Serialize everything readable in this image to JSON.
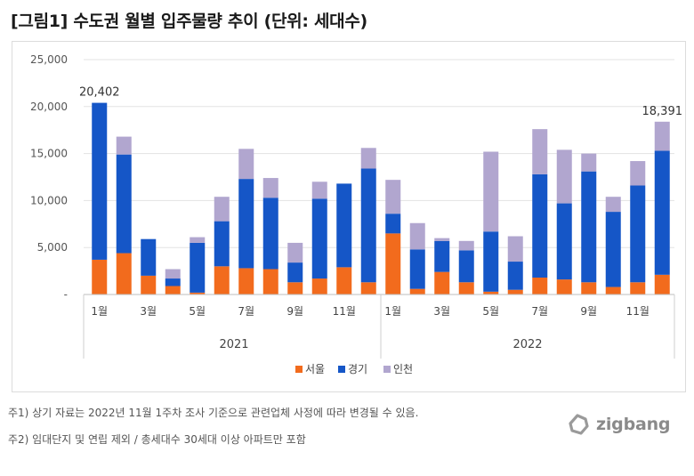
{
  "title": "[그림1] 수도권 월별 입주물량 추이 (단위: 세대수)",
  "notes": {
    "note1": "주1) 상기 자료는 2022년 11월 1주차 조사 기준으로 관련업체 사정에 따라 변경될 수 있음.",
    "note2": "주2) 임대단지 및 연립 제외 / 총세대수 30세대 이상 아파트만 포함"
  },
  "logo": {
    "text": "zigbang",
    "icon": "zigbang-logo-icon"
  },
  "colors": {
    "seoul": "#f26b1d",
    "gyeonggi": "#1556c7",
    "incheon": "#b1a6cf"
  },
  "chart_data": {
    "type": "bar",
    "stacked": true,
    "title": "",
    "xlabel": "",
    "ylabel": "",
    "ylim": [
      0,
      25000
    ],
    "yticks": [
      "25,000",
      "20,000",
      "15,000",
      "10,000",
      "5,000",
      "-"
    ],
    "ytick_values": [
      25000,
      20000,
      15000,
      10000,
      5000,
      0
    ],
    "categories": [
      "2021-01",
      "2021-02",
      "2021-03",
      "2021-04",
      "2021-05",
      "2021-06",
      "2021-07",
      "2021-08",
      "2021-09",
      "2021-10",
      "2021-11",
      "2021-12",
      "2022-01",
      "2022-02",
      "2022-03",
      "2022-04",
      "2022-05",
      "2022-06",
      "2022-07",
      "2022-08",
      "2022-09",
      "2022-10",
      "2022-11",
      "2022-12"
    ],
    "month_labels": [
      "1월",
      "",
      "3월",
      "",
      "5월",
      "",
      "7월",
      "",
      "9월",
      "",
      "11월",
      "",
      "1월",
      "",
      "3월",
      "",
      "5월",
      "",
      "7월",
      "",
      "9월",
      "",
      "11월",
      ""
    ],
    "groups": [
      {
        "label": "2021",
        "start": 0,
        "count": 12
      },
      {
        "label": "2022",
        "start": 12,
        "count": 12
      }
    ],
    "series": [
      {
        "name": "서울",
        "color_key": "seoul",
        "values": [
          3700,
          4400,
          2000,
          900,
          200,
          3000,
          2800,
          2700,
          1300,
          1700,
          2900,
          1300,
          6500,
          600,
          2400,
          1300,
          300,
          500,
          1800,
          1600,
          1300,
          800,
          1300,
          2100
        ]
      },
      {
        "name": "경기",
        "color_key": "gyeonggi",
        "values": [
          16700,
          10500,
          3900,
          800,
          5300,
          4800,
          9500,
          7600,
          2100,
          8500,
          8900,
          12100,
          2100,
          4200,
          3300,
          3400,
          6400,
          3000,
          11000,
          8100,
          11800,
          8000,
          10300,
          13200
        ]
      },
      {
        "name": "인천",
        "color_key": "incheon",
        "values": [
          0,
          1900,
          0,
          1000,
          600,
          2600,
          3200,
          2100,
          2100,
          1800,
          0,
          2200,
          3600,
          2800,
          300,
          1000,
          8500,
          2700,
          4800,
          5700,
          1900,
          1600,
          2600,
          3091
        ]
      }
    ],
    "data_labels": [
      {
        "index": 0,
        "text": "20,402"
      },
      {
        "index": 23,
        "text": "18,391"
      }
    ],
    "legend": {
      "position": "bottom",
      "entries": [
        "서울",
        "경기",
        "인천"
      ]
    },
    "grid": true
  }
}
